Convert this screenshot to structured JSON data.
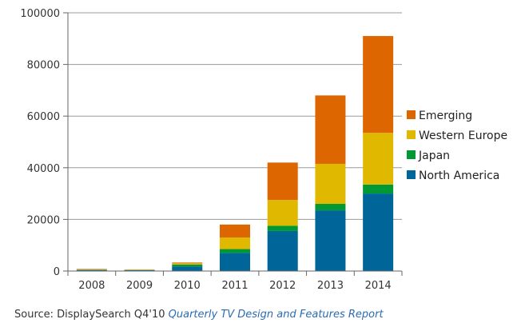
{
  "chart_data": {
    "type": "bar",
    "stacked": true,
    "categories": [
      "2008",
      "2009",
      "2010",
      "2011",
      "2012",
      "2013",
      "2014"
    ],
    "series": [
      {
        "name": "North America",
        "color": "#006699",
        "values": [
          400,
          300,
          1800,
          7000,
          15500,
          23500,
          30000
        ]
      },
      {
        "name": "Japan",
        "color": "#009933",
        "values": [
          100,
          100,
          700,
          1500,
          2000,
          2500,
          3500
        ]
      },
      {
        "name": "Western Europe",
        "color": "#e0b800",
        "values": [
          100,
          100,
          500,
          4500,
          10000,
          15500,
          20000
        ]
      },
      {
        "name": "Emerging",
        "color": "#dd6600",
        "values": [
          200,
          100,
          300,
          5000,
          14500,
          26500,
          37500
        ]
      }
    ],
    "ylim": [
      0,
      100000
    ],
    "yticks": [
      "0",
      "20000",
      "40000",
      "60000",
      "80000",
      "100000"
    ],
    "grid": true,
    "legend_position": "right"
  },
  "source": {
    "prefix": "Source: DisplaySearch Q4'10 ",
    "report": "Quarterly TV Design and Features Report"
  }
}
